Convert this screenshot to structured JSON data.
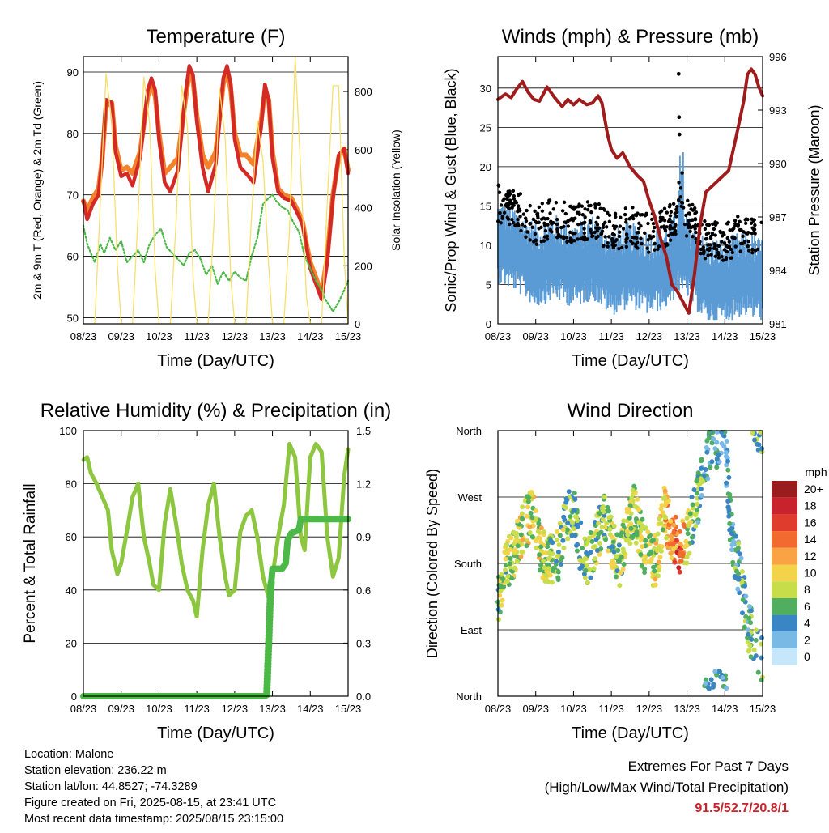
{
  "chart_data": [
    {
      "id": "temperature",
      "type": "line",
      "title": "Temperature (F)",
      "xlabel": "Time (Day/UTC)",
      "ylabel": "2m & 9m T (Red, Orange) & 2m Td (Green)",
      "ylabel_right": "Solar Insolation (Yellow)",
      "x_ticks": [
        "08/23",
        "09/23",
        "10/23",
        "11/23",
        "12/23",
        "13/23",
        "14/23",
        "15/23"
      ],
      "y_ticks": [
        50,
        60,
        70,
        80,
        90
      ],
      "y_ticks_right": [
        0,
        200,
        400,
        600,
        800
      ],
      "ylim": [
        49,
        92.5
      ],
      "ylim_right": [
        0,
        920
      ],
      "grid": true,
      "colors": {
        "t2m": "#d42a25",
        "t9m": "#f4822a",
        "td": "#4cb847",
        "solar": "#f7e06a"
      },
      "series": [
        {
          "key": "t9m",
          "x": [
            0,
            0.1,
            0.25,
            0.4,
            0.5,
            0.6,
            0.75,
            0.85,
            1.0,
            1.15,
            1.3,
            1.5,
            1.7,
            1.8,
            1.9,
            2.0,
            2.15,
            2.3,
            2.5,
            2.7,
            2.8,
            2.9,
            3.0,
            3.15,
            3.3,
            3.5,
            3.7,
            3.8,
            3.9,
            4.0,
            4.15,
            4.3,
            4.5,
            4.7,
            4.8,
            4.9,
            5.0,
            5.15,
            5.3,
            5.5,
            5.7,
            5.8,
            5.9,
            6.0,
            6.15,
            6.3,
            6.45,
            6.6,
            6.75,
            6.9,
            7.0
          ],
          "y": [
            69,
            67.5,
            69.5,
            71,
            76,
            84.5,
            85,
            78,
            74,
            74.5,
            73.5,
            77,
            86,
            88,
            86,
            80,
            73.5,
            74.5,
            76,
            85.5,
            90,
            88.5,
            83,
            76.5,
            74.5,
            77,
            88,
            90,
            87,
            80,
            76.5,
            76.5,
            75,
            82,
            87,
            85.5,
            77,
            71,
            70,
            69.5,
            67,
            65.5,
            62,
            59,
            56.5,
            54,
            60,
            70,
            76,
            77.5,
            74
          ]
        },
        {
          "key": "t2m",
          "x": [
            0,
            0.1,
            0.25,
            0.4,
            0.5,
            0.6,
            0.75,
            0.85,
            1.0,
            1.15,
            1.3,
            1.5,
            1.7,
            1.8,
            1.9,
            2.0,
            2.15,
            2.3,
            2.5,
            2.7,
            2.8,
            2.9,
            3.0,
            3.15,
            3.3,
            3.5,
            3.7,
            3.8,
            3.9,
            4.0,
            4.15,
            4.3,
            4.5,
            4.7,
            4.8,
            4.9,
            5.0,
            5.15,
            5.3,
            5.5,
            5.7,
            5.8,
            5.9,
            6.0,
            6.15,
            6.3,
            6.45,
            6.6,
            6.75,
            6.9,
            7.0
          ],
          "y": [
            69,
            66,
            68.5,
            70,
            76,
            85.5,
            85,
            77,
            73,
            73.5,
            71.5,
            76,
            87,
            89,
            87,
            79,
            72,
            70.5,
            74,
            86.5,
            91,
            89.5,
            82,
            74.5,
            70.5,
            75,
            89,
            91,
            88,
            79,
            74.5,
            73.5,
            72,
            81,
            88,
            85.5,
            76,
            70.5,
            69.5,
            69,
            66.5,
            65,
            61.5,
            58,
            55.5,
            53,
            59,
            69.5,
            76.5,
            77.5,
            73.5
          ]
        },
        {
          "key": "td",
          "x": [
            0,
            0.1,
            0.2,
            0.3,
            0.45,
            0.55,
            0.7,
            0.85,
            1.0,
            1.15,
            1.3,
            1.45,
            1.6,
            1.75,
            1.9,
            2.05,
            2.2,
            2.35,
            2.5,
            2.65,
            2.8,
            2.95,
            3.1,
            3.25,
            3.4,
            3.55,
            3.7,
            3.85,
            4.0,
            4.15,
            4.3,
            4.45,
            4.6,
            4.75,
            4.9,
            5.0,
            5.1,
            5.25,
            5.4,
            5.55,
            5.7,
            5.85,
            6.0,
            6.15,
            6.3,
            6.4,
            6.5,
            6.6,
            6.75,
            6.9,
            7.0
          ],
          "y": [
            65,
            62,
            60.5,
            59,
            62,
            60.5,
            63,
            61,
            62.5,
            59,
            60,
            61,
            59,
            62,
            63.5,
            64.5,
            61.5,
            60.5,
            59.5,
            58.5,
            60.5,
            61,
            59.5,
            57,
            58.5,
            55.5,
            57.5,
            56,
            57.5,
            56.5,
            56,
            60,
            63,
            68.5,
            69.5,
            70,
            69,
            68,
            67.5,
            65.5,
            64,
            60,
            58,
            56,
            54.5,
            53,
            52,
            51,
            52.5,
            54.5,
            56
          ]
        },
        {
          "key": "solar",
          "x": [
            0,
            0.3,
            0.45,
            0.6,
            0.75,
            0.9,
            1.0,
            1.3,
            1.45,
            1.6,
            1.75,
            1.9,
            2.0,
            2.3,
            2.45,
            2.6,
            2.75,
            2.9,
            3.0,
            3.3,
            3.45,
            3.6,
            3.75,
            3.9,
            4.0,
            4.3,
            4.45,
            4.6,
            4.75,
            4.9,
            5.0,
            5.3,
            5.45,
            5.6,
            5.75,
            5.9,
            6.0,
            6.3,
            6.45,
            6.6,
            6.75,
            6.9,
            7.0
          ],
          "y": [
            0,
            0,
            420,
            860,
            700,
            200,
            0,
            0,
            380,
            850,
            690,
            180,
            0,
            0,
            350,
            820,
            680,
            160,
            0,
            0,
            340,
            810,
            640,
            150,
            0,
            0,
            380,
            700,
            560,
            200,
            0,
            0,
            320,
            920,
            520,
            90,
            0,
            0,
            420,
            820,
            820,
            220,
            0
          ]
        }
      ]
    },
    {
      "id": "winds",
      "type": "scatter",
      "title": "Winds (mph) & Pressure (mb)",
      "xlabel": "Time (Day/UTC)",
      "ylabel": "Sonic/Prop Wind & Gust (Blue, Black)",
      "ylabel_right": "Station Pressure (Maroon)",
      "x_ticks": [
        "08/23",
        "09/23",
        "10/23",
        "11/23",
        "12/23",
        "13/23",
        "14/23",
        "15/23"
      ],
      "y_ticks": [
        0,
        5,
        10,
        15,
        20,
        25,
        30
      ],
      "y_ticks_right": [
        981,
        984,
        987,
        990,
        993,
        996
      ],
      "ylim": [
        0,
        34
      ],
      "ylim_right": [
        981,
        996
      ],
      "grid": true,
      "colors": {
        "wind": "#5b9bd5",
        "gust": "#000000",
        "pressure": "#a01c1c"
      },
      "series": [
        {
          "key": "pressure",
          "x": [
            0,
            0.2,
            0.35,
            0.5,
            0.65,
            0.8,
            0.95,
            1.1,
            1.3,
            1.5,
            1.7,
            1.85,
            2.0,
            2.15,
            2.35,
            2.5,
            2.65,
            2.75,
            2.9,
            3.0,
            3.15,
            3.3,
            3.5,
            3.7,
            3.85,
            4.0,
            4.15,
            4.3,
            4.45,
            4.6,
            4.75,
            4.9,
            5.05,
            5.2,
            5.35,
            5.5,
            5.7,
            5.9,
            6.1,
            6.3,
            6.5,
            6.6,
            6.7,
            6.8,
            6.9,
            7.0
          ],
          "y": [
            993.6,
            993.9,
            993.7,
            994.2,
            994.6,
            994.0,
            993.6,
            993.5,
            994.3,
            993.7,
            993.2,
            993.6,
            993.3,
            993.6,
            993.3,
            993.4,
            993.8,
            993.4,
            991.6,
            990.8,
            990.3,
            990.6,
            989.8,
            989.3,
            989.0,
            987.9,
            987.0,
            985.8,
            984.8,
            983.2,
            982.8,
            982.2,
            981.6,
            983.8,
            986.6,
            988.4,
            988.8,
            989.2,
            989.6,
            991.5,
            993.5,
            995.0,
            995.3,
            995.0,
            994.3,
            993.8
          ]
        }
      ]
    },
    {
      "id": "humidity",
      "type": "line",
      "title": "Relative Humidity (%) & Precipitation (in)",
      "xlabel": "Time (Day/UTC)",
      "ylabel": "Percent & Total Rainfall",
      "x_ticks": [
        "08/23",
        "09/23",
        "10/23",
        "11/23",
        "12/23",
        "13/23",
        "14/23",
        "15/23"
      ],
      "y_ticks": [
        0,
        20,
        40,
        60,
        80,
        100
      ],
      "y_ticks_right": [
        "0.0",
        "0.3",
        "0.6",
        "0.9",
        "1.2",
        "1.5"
      ],
      "ylim": [
        0,
        100
      ],
      "ylim_right": [
        0,
        1.5
      ],
      "grid": true,
      "colors": {
        "rh": "#8dc63f",
        "precip": "#4cb847"
      },
      "series": [
        {
          "key": "rh",
          "x": [
            0,
            0.1,
            0.2,
            0.35,
            0.5,
            0.65,
            0.75,
            0.9,
            1.0,
            1.15,
            1.3,
            1.45,
            1.6,
            1.75,
            1.85,
            2.0,
            2.15,
            2.3,
            2.45,
            2.6,
            2.75,
            2.9,
            3.0,
            3.15,
            3.3,
            3.45,
            3.6,
            3.75,
            3.85,
            4.0,
            4.15,
            4.3,
            4.45,
            4.6,
            4.75,
            4.9,
            5.0,
            5.15,
            5.3,
            5.45,
            5.6,
            5.75,
            5.85,
            6.0,
            6.15,
            6.3,
            6.45,
            6.6,
            6.75,
            6.9,
            7.0
          ],
          "y": [
            89,
            90,
            84,
            80,
            75,
            70,
            55,
            46,
            50,
            62,
            75,
            80,
            60,
            50,
            42,
            40,
            65,
            78,
            65,
            50,
            40,
            36,
            30,
            55,
            72,
            80,
            60,
            45,
            38,
            40,
            62,
            68,
            70,
            60,
            45,
            37,
            45,
            60,
            72,
            95,
            90,
            60,
            55,
            90,
            95,
            92,
            60,
            45,
            52,
            83,
            93
          ]
        },
        {
          "key": "precip",
          "x": [
            0,
            4.8,
            4.85,
            4.9,
            4.95,
            5.0,
            5.05,
            5.15,
            5.25,
            5.35,
            5.4,
            5.5,
            5.6,
            5.7,
            5.75,
            6.0,
            6.5,
            7.0
          ],
          "y": [
            0,
            0,
            0.01,
            0.3,
            0.6,
            0.72,
            0.72,
            0.72,
            0.72,
            0.75,
            0.88,
            0.92,
            0.93,
            0.94,
            1.0,
            1.0,
            1.0,
            1.0
          ]
        }
      ]
    },
    {
      "id": "direction",
      "type": "scatter",
      "title": "Wind Direction",
      "xlabel": "Time (Day/UTC)",
      "ylabel": "Direction (Colored By Speed)",
      "x_ticks": [
        "08/23",
        "09/23",
        "10/23",
        "11/23",
        "12/23",
        "13/23",
        "14/23",
        "15/23"
      ],
      "y_ticks": [
        "North",
        "East",
        "South",
        "West",
        "North"
      ],
      "ylim": [
        0,
        360
      ],
      "grid": true,
      "legend": {
        "title": "mph",
        "placement": "right",
        "labels": [
          "20+",
          "18",
          "16",
          "14",
          "12",
          "10",
          "8",
          "6",
          "4",
          "2",
          "0"
        ],
        "colors": [
          "#9b1c1c",
          "#c8232c",
          "#e03c2d",
          "#f26a2d",
          "#f9a345",
          "#f3d34a",
          "#c7dd4a",
          "#4fae5f",
          "#3a86c4",
          "#79b9e6",
          "#c5e6fb"
        ]
      }
    }
  ],
  "station_info": {
    "location": "Location: Malone",
    "elevation": "Station elevation: 236.22 m",
    "latlon": "Station lat/lon: 44.8527; -74.3289",
    "created": "Figure created on Fri, 2025-08-15, at 23:41 UTC",
    "recent": "Most recent data timestamp: 2025/08/15 23:15:00"
  },
  "extremes": {
    "title": "Extremes For Past 7 Days",
    "subtitle": "(High/Low/Max Wind/Total Precipitation)",
    "values": "91.5/52.7/20.8/1"
  }
}
